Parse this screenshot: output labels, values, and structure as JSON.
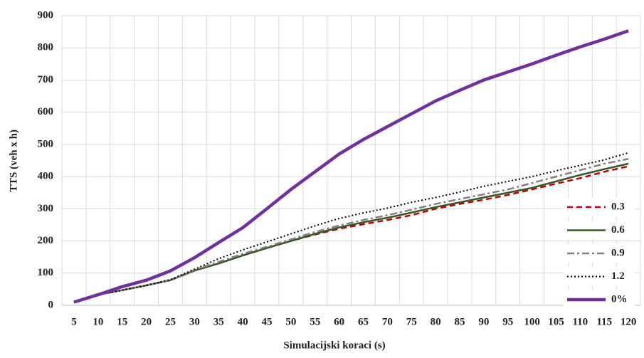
{
  "chart_data": {
    "type": "line",
    "x_label": "Simulacijski koraci (s)",
    "y_label": "TTS (veh x h)",
    "x": [
      5,
      10,
      15,
      20,
      25,
      30,
      35,
      40,
      45,
      50,
      55,
      60,
      65,
      70,
      75,
      80,
      85,
      90,
      95,
      100,
      105,
      110,
      115,
      120
    ],
    "ylim": [
      0,
      900
    ],
    "yticks": [
      0,
      100,
      200,
      300,
      400,
      500,
      600,
      700,
      800,
      900
    ],
    "grid": true,
    "legend": "right",
    "series": [
      {
        "name": "0.3",
        "color": "#c00000",
        "dash": "dashed",
        "values": [
          10,
          33,
          47,
          62,
          78,
          108,
          130,
          155,
          178,
          200,
          220,
          238,
          252,
          265,
          280,
          300,
          315,
          328,
          343,
          360,
          378,
          395,
          415,
          432
        ]
      },
      {
        "name": "0.6",
        "color": "#375623",
        "dash": "solid",
        "values": [
          10,
          33,
          47,
          62,
          78,
          108,
          130,
          155,
          178,
          200,
          222,
          242,
          258,
          272,
          288,
          305,
          320,
          335,
          350,
          365,
          385,
          405,
          423,
          440
        ]
      },
      {
        "name": "0.9",
        "color": "#808080",
        "dash": "dashdot",
        "values": [
          10,
          33,
          47,
          62,
          78,
          110,
          135,
          160,
          182,
          205,
          228,
          248,
          265,
          280,
          297,
          315,
          330,
          345,
          360,
          380,
          400,
          420,
          440,
          455
        ]
      },
      {
        "name": "1.2",
        "color": "#000000",
        "dash": "dotted",
        "values": [
          10,
          33,
          47,
          62,
          80,
          112,
          145,
          172,
          197,
          222,
          247,
          270,
          287,
          302,
          320,
          335,
          352,
          370,
          385,
          400,
          418,
          435,
          452,
          474
        ]
      },
      {
        "name": "0%",
        "color": "#7030a0",
        "dash": "thick",
        "values": [
          10,
          33,
          58,
          78,
          107,
          148,
          195,
          241,
          300,
          360,
          415,
          470,
          515,
          555,
          595,
          635,
          668,
          700,
          725,
          750,
          777,
          803,
          827,
          853
        ]
      }
    ]
  }
}
